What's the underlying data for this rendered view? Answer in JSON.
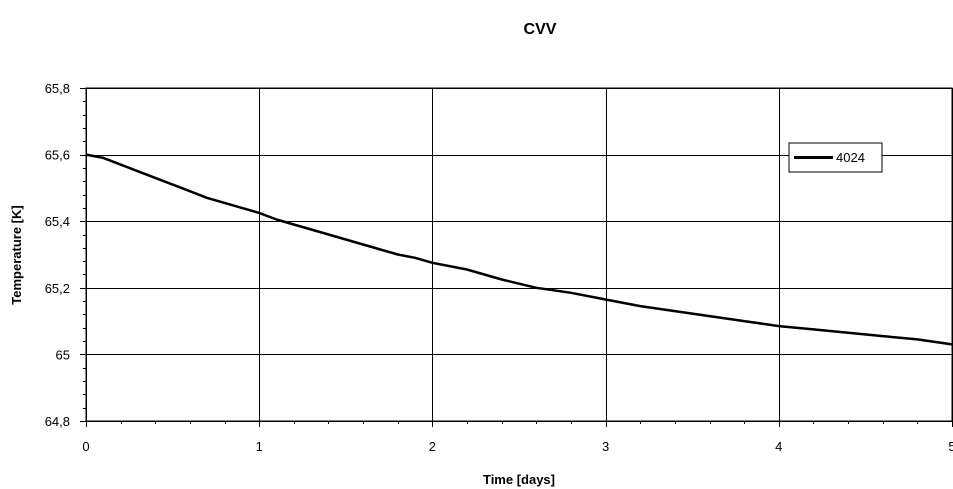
{
  "chart_data": {
    "type": "line",
    "title": "CVV",
    "xlabel": "Time [days]",
    "ylabel": "Temperature [K]",
    "xlim": [
      0,
      5
    ],
    "ylim": [
      64.8,
      65.8
    ],
    "x_ticks": [
      "0",
      "1",
      "2",
      "3",
      "4",
      "5"
    ],
    "y_ticks": [
      "64,8",
      "65",
      "65,2",
      "65,4",
      "65,6",
      "65,8"
    ],
    "grid": true,
    "legend_position": "top-right",
    "series": [
      {
        "name": "4024",
        "color": "#000000",
        "x": [
          0,
          0.1,
          0.2,
          0.3,
          0.4,
          0.5,
          0.6,
          0.7,
          0.8,
          0.9,
          1.0,
          1.1,
          1.2,
          1.3,
          1.4,
          1.5,
          1.6,
          1.7,
          1.8,
          1.9,
          2.0,
          2.2,
          2.4,
          2.6,
          2.8,
          3.0,
          3.2,
          3.4,
          3.6,
          3.8,
          4.0,
          4.2,
          4.4,
          4.6,
          4.8,
          5.0
        ],
        "y": [
          65.6,
          65.59,
          65.57,
          65.55,
          65.53,
          65.51,
          65.49,
          65.47,
          65.455,
          65.44,
          65.425,
          65.405,
          65.39,
          65.375,
          65.36,
          65.345,
          65.33,
          65.315,
          65.3,
          65.29,
          65.275,
          65.255,
          65.225,
          65.2,
          65.185,
          65.165,
          65.145,
          65.13,
          65.115,
          65.1,
          65.085,
          65.075,
          65.065,
          65.055,
          65.045,
          65.03
        ]
      }
    ]
  }
}
